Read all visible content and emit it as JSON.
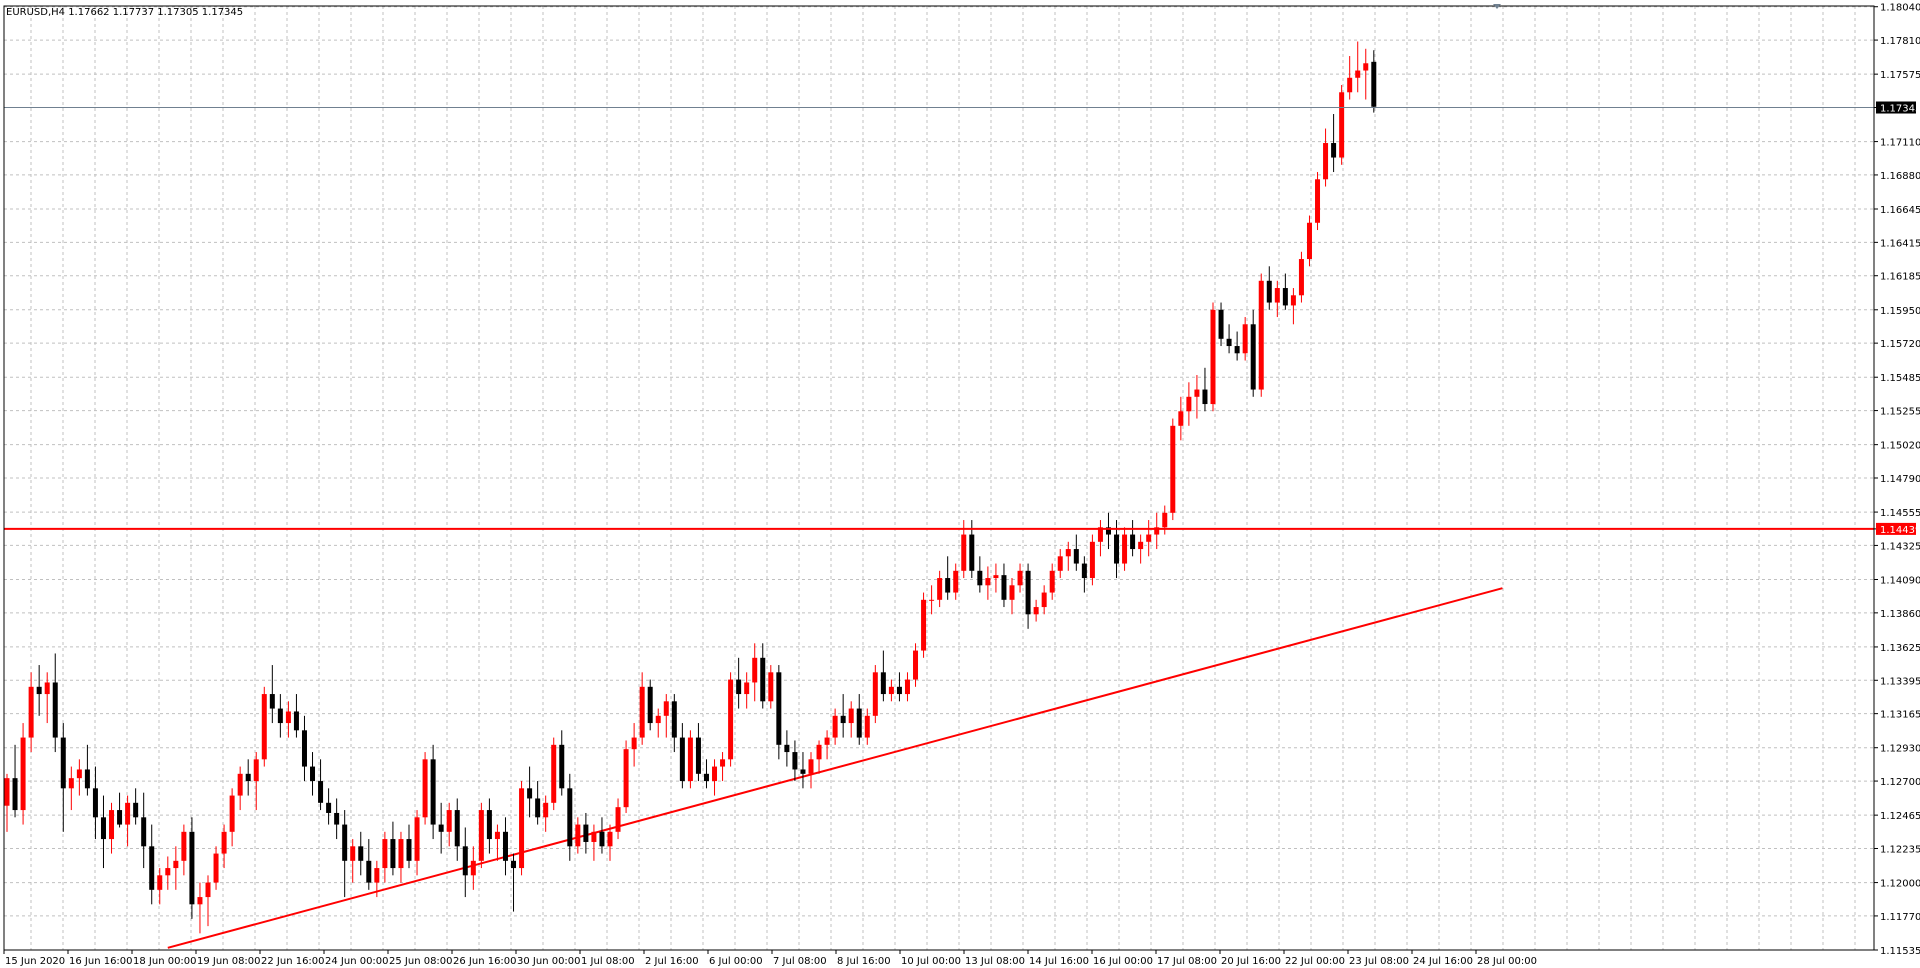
{
  "header": {
    "symbol_text": "EURUSD,H4 1.17662 1.17737 1.17305 1.17345"
  },
  "colors": {
    "bull_candle": "#ff0000",
    "bear_candle": "#000000",
    "grid": "#c0c0c0",
    "level_line": "#ff0000",
    "trend_line": "#ff0000",
    "current_price_line": "#708090"
  },
  "chart_data": {
    "type": "candlestick",
    "ylim": [
      1.11535,
      1.18045
    ],
    "y_tick_labels": [
      "1.18040",
      "1.17810",
      "1.17575",
      "1.17345",
      "1.17110",
      "1.16880",
      "1.16645",
      "1.16415",
      "1.16185",
      "1.15950",
      "1.15720",
      "1.15485",
      "1.15255",
      "1.15020",
      "1.14790",
      "1.14555",
      "1.14439",
      "1.14325",
      "1.14090",
      "1.13860",
      "1.13625",
      "1.13395",
      "1.13165",
      "1.12930",
      "1.12700",
      "1.12465",
      "1.12235",
      "1.12000",
      "1.11770",
      "1.11535"
    ],
    "x_tick_labels": [
      "15 Jun 2020",
      "16 Jun 16:00",
      "18 Jun 00:00",
      "19 Jun 08:00",
      "22 Jun 16:00",
      "24 Jun 00:00",
      "25 Jun 08:00",
      "26 Jun 16:00",
      "30 Jun 00:00",
      "1 Jul 08:00",
      "2 Jul 16:00",
      "6 Jul 00:00",
      "7 Jul 08:00",
      "8 Jul 16:00",
      "10 Jul 00:00",
      "13 Jul 08:00",
      "14 Jul 16:00",
      "16 Jul 00:00",
      "17 Jul 08:00",
      "20 Jul 16:00",
      "22 Jul 00:00",
      "23 Jul 08:00",
      "24 Jul 16:00",
      "28 Jul 00:00"
    ],
    "current_price": 1.17345,
    "horizontal_level": 1.14439,
    "candles": [
      [
        1.1253,
        1.1275,
        1.1235,
        1.1272
      ],
      [
        1.1272,
        1.1295,
        1.1245,
        1.125
      ],
      [
        1.125,
        1.131,
        1.124,
        1.13
      ],
      [
        1.13,
        1.1345,
        1.129,
        1.1335
      ],
      [
        1.1335,
        1.135,
        1.1315,
        1.133
      ],
      [
        1.133,
        1.1345,
        1.131,
        1.1338
      ],
      [
        1.1338,
        1.1358,
        1.129,
        1.13
      ],
      [
        1.13,
        1.131,
        1.1235,
        1.1265
      ],
      [
        1.1265,
        1.128,
        1.125,
        1.1272
      ],
      [
        1.1272,
        1.1285,
        1.126,
        1.1278
      ],
      [
        1.1278,
        1.1295,
        1.126,
        1.1265
      ],
      [
        1.1265,
        1.128,
        1.123,
        1.1245
      ],
      [
        1.1245,
        1.126,
        1.121,
        1.123
      ],
      [
        1.123,
        1.1255,
        1.122,
        1.125
      ],
      [
        1.125,
        1.1262,
        1.1238,
        1.124
      ],
      [
        1.124,
        1.126,
        1.1225,
        1.1255
      ],
      [
        1.1255,
        1.1265,
        1.124,
        1.1245
      ],
      [
        1.1245,
        1.1262,
        1.121,
        1.1225
      ],
      [
        1.1225,
        1.124,
        1.1185,
        1.1195
      ],
      [
        1.1195,
        1.121,
        1.1185,
        1.1205
      ],
      [
        1.1205,
        1.1218,
        1.1195,
        1.121
      ],
      [
        1.121,
        1.1225,
        1.1195,
        1.1215
      ],
      [
        1.1215,
        1.124,
        1.1205,
        1.1235
      ],
      [
        1.1235,
        1.1245,
        1.1175,
        1.1185
      ],
      [
        1.1185,
        1.12,
        1.1165,
        1.119
      ],
      [
        1.119,
        1.1205,
        1.117,
        1.12
      ],
      [
        1.12,
        1.1225,
        1.1195,
        1.122
      ],
      [
        1.122,
        1.124,
        1.121,
        1.1235
      ],
      [
        1.1235,
        1.1265,
        1.1225,
        1.126
      ],
      [
        1.126,
        1.128,
        1.125,
        1.1275
      ],
      [
        1.1275,
        1.1285,
        1.126,
        1.127
      ],
      [
        1.127,
        1.129,
        1.125,
        1.1285
      ],
      [
        1.1285,
        1.1335,
        1.128,
        1.133
      ],
      [
        1.133,
        1.135,
        1.131,
        1.132
      ],
      [
        1.132,
        1.133,
        1.13,
        1.131
      ],
      [
        1.131,
        1.1325,
        1.13,
        1.1318
      ],
      [
        1.1318,
        1.133,
        1.13,
        1.1305
      ],
      [
        1.1305,
        1.1315,
        1.127,
        1.128
      ],
      [
        1.128,
        1.129,
        1.126,
        1.127
      ],
      [
        1.127,
        1.1285,
        1.125,
        1.1255
      ],
      [
        1.1255,
        1.1265,
        1.124,
        1.1248
      ],
      [
        1.1248,
        1.1258,
        1.123,
        1.124
      ],
      [
        1.124,
        1.125,
        1.119,
        1.1215
      ],
      [
        1.1215,
        1.123,
        1.12,
        1.1225
      ],
      [
        1.1225,
        1.1235,
        1.1205,
        1.1215
      ],
      [
        1.1215,
        1.123,
        1.1195,
        1.12
      ],
      [
        1.12,
        1.1215,
        1.119,
        1.121
      ],
      [
        1.121,
        1.1235,
        1.12,
        1.123
      ],
      [
        1.123,
        1.1242,
        1.1205,
        1.121
      ],
      [
        1.121,
        1.1235,
        1.12,
        1.123
      ],
      [
        1.123,
        1.124,
        1.121,
        1.1215
      ],
      [
        1.1215,
        1.125,
        1.1205,
        1.1245
      ],
      [
        1.1245,
        1.129,
        1.124,
        1.1285
      ],
      [
        1.1285,
        1.1295,
        1.123,
        1.124
      ],
      [
        1.124,
        1.1255,
        1.122,
        1.1235
      ],
      [
        1.1235,
        1.1255,
        1.1225,
        1.125
      ],
      [
        1.125,
        1.1258,
        1.1215,
        1.1225
      ],
      [
        1.1225,
        1.1238,
        1.119,
        1.1205
      ],
      [
        1.1205,
        1.1225,
        1.1195,
        1.1215
      ],
      [
        1.1215,
        1.1255,
        1.121,
        1.125
      ],
      [
        1.125,
        1.1258,
        1.122,
        1.123
      ],
      [
        1.123,
        1.124,
        1.1215,
        1.1235
      ],
      [
        1.1235,
        1.1245,
        1.1205,
        1.1215
      ],
      [
        1.1215,
        1.122,
        1.118,
        1.121
      ],
      [
        1.121,
        1.127,
        1.1205,
        1.1265
      ],
      [
        1.1265,
        1.128,
        1.1245,
        1.1258
      ],
      [
        1.1258,
        1.127,
        1.124,
        1.1245
      ],
      [
        1.1245,
        1.126,
        1.1235,
        1.1255
      ],
      [
        1.1255,
        1.13,
        1.125,
        1.1295
      ],
      [
        1.1295,
        1.1305,
        1.126,
        1.1265
      ],
      [
        1.1265,
        1.1275,
        1.1215,
        1.1225
      ],
      [
        1.1225,
        1.1245,
        1.122,
        1.124
      ],
      [
        1.124,
        1.1248,
        1.122,
        1.1228
      ],
      [
        1.1228,
        1.124,
        1.1215,
        1.1235
      ],
      [
        1.1235,
        1.1245,
        1.122,
        1.1225
      ],
      [
        1.1225,
        1.124,
        1.1215,
        1.1235
      ],
      [
        1.1235,
        1.1258,
        1.123,
        1.1252
      ],
      [
        1.1252,
        1.1298,
        1.1248,
        1.1292
      ],
      [
        1.1292,
        1.131,
        1.128,
        1.13
      ],
      [
        1.13,
        1.1345,
        1.1295,
        1.1335
      ],
      [
        1.1335,
        1.134,
        1.1305,
        1.131
      ],
      [
        1.131,
        1.132,
        1.13,
        1.1315
      ],
      [
        1.1315,
        1.133,
        1.13,
        1.1325
      ],
      [
        1.1325,
        1.133,
        1.129,
        1.13
      ],
      [
        1.13,
        1.131,
        1.1265,
        1.127
      ],
      [
        1.127,
        1.1305,
        1.1265,
        1.13
      ],
      [
        1.13,
        1.131,
        1.127,
        1.1275
      ],
      [
        1.1275,
        1.1285,
        1.1265,
        1.127
      ],
      [
        1.127,
        1.1285,
        1.126,
        1.128
      ],
      [
        1.128,
        1.129,
        1.127,
        1.1285
      ],
      [
        1.1285,
        1.1345,
        1.128,
        1.134
      ],
      [
        1.134,
        1.1355,
        1.132,
        1.133
      ],
      [
        1.133,
        1.1345,
        1.132,
        1.1338
      ],
      [
        1.1338,
        1.1365,
        1.1325,
        1.1355
      ],
      [
        1.1355,
        1.1365,
        1.132,
        1.1325
      ],
      [
        1.1325,
        1.135,
        1.132,
        1.1345
      ],
      [
        1.1345,
        1.135,
        1.1285,
        1.1295
      ],
      [
        1.1295,
        1.1305,
        1.128,
        1.129
      ],
      [
        1.129,
        1.1298,
        1.127,
        1.1278
      ],
      [
        1.1278,
        1.129,
        1.1265,
        1.1275
      ],
      [
        1.1275,
        1.129,
        1.1265,
        1.1285
      ],
      [
        1.1285,
        1.1298,
        1.1275,
        1.1295
      ],
      [
        1.1295,
        1.1305,
        1.1285,
        1.13
      ],
      [
        1.13,
        1.132,
        1.1295,
        1.1315
      ],
      [
        1.1315,
        1.133,
        1.13,
        1.131
      ],
      [
        1.131,
        1.1325,
        1.13,
        1.132
      ],
      [
        1.132,
        1.133,
        1.1295,
        1.13
      ],
      [
        1.13,
        1.132,
        1.1295,
        1.1315
      ],
      [
        1.1315,
        1.135,
        1.131,
        1.1345
      ],
      [
        1.1345,
        1.136,
        1.1325,
        1.133
      ],
      [
        1.133,
        1.134,
        1.1325,
        1.1335
      ],
      [
        1.1335,
        1.1345,
        1.1325,
        1.133
      ],
      [
        1.133,
        1.1345,
        1.1325,
        1.134
      ],
      [
        1.134,
        1.1365,
        1.1335,
        1.136
      ],
      [
        1.136,
        1.14,
        1.1355,
        1.1395
      ],
      [
        1.1395,
        1.1405,
        1.1385,
        1.1395
      ],
      [
        1.1395,
        1.1415,
        1.139,
        1.141
      ],
      [
        1.141,
        1.1425,
        1.1395,
        1.14
      ],
      [
        1.14,
        1.142,
        1.1395,
        1.1415
      ],
      [
        1.1415,
        1.145,
        1.141,
        1.144
      ],
      [
        1.144,
        1.145,
        1.141,
        1.1415
      ],
      [
        1.1415,
        1.1425,
        1.14,
        1.1405
      ],
      [
        1.1405,
        1.1418,
        1.1395,
        1.141
      ],
      [
        1.141,
        1.142,
        1.14,
        1.1412
      ],
      [
        1.1412,
        1.142,
        1.139,
        1.1395
      ],
      [
        1.1395,
        1.141,
        1.1385,
        1.1405
      ],
      [
        1.1405,
        1.142,
        1.14,
        1.1415
      ],
      [
        1.1415,
        1.142,
        1.1375,
        1.1385
      ],
      [
        1.1385,
        1.1395,
        1.138,
        1.139
      ],
      [
        1.139,
        1.1405,
        1.1385,
        1.14
      ],
      [
        1.14,
        1.142,
        1.1395,
        1.1415
      ],
      [
        1.1415,
        1.143,
        1.141,
        1.1425
      ],
      [
        1.1425,
        1.1435,
        1.1415,
        1.143
      ],
      [
        1.143,
        1.144,
        1.1415,
        1.142
      ],
      [
        1.142,
        1.1425,
        1.14,
        1.141
      ],
      [
        1.141,
        1.144,
        1.1405,
        1.1435
      ],
      [
        1.1435,
        1.145,
        1.1425,
        1.1445
      ],
      [
        1.1445,
        1.1455,
        1.143,
        1.144
      ],
      [
        1.144,
        1.145,
        1.141,
        1.142
      ],
      [
        1.142,
        1.1445,
        1.1415,
        1.144
      ],
      [
        1.144,
        1.145,
        1.1425,
        1.143
      ],
      [
        1.143,
        1.144,
        1.142,
        1.1435
      ],
      [
        1.1435,
        1.145,
        1.1425,
        1.144
      ],
      [
        1.144,
        1.1455,
        1.143,
        1.1445
      ],
      [
        1.1445,
        1.146,
        1.144,
        1.1455
      ],
      [
        1.1455,
        1.152,
        1.145,
        1.1515
      ],
      [
        1.1515,
        1.1535,
        1.1505,
        1.1525
      ],
      [
        1.1525,
        1.1545,
        1.1515,
        1.1535
      ],
      [
        1.1535,
        1.155,
        1.152,
        1.154
      ],
      [
        1.154,
        1.1555,
        1.1525,
        1.153
      ],
      [
        1.153,
        1.16,
        1.1525,
        1.1595
      ],
      [
        1.1595,
        1.16,
        1.157,
        1.1575
      ],
      [
        1.1575,
        1.1585,
        1.1565,
        1.157
      ],
      [
        1.157,
        1.158,
        1.156,
        1.1565
      ],
      [
        1.1565,
        1.159,
        1.156,
        1.1585
      ],
      [
        1.1585,
        1.1595,
        1.1535,
        1.154
      ],
      [
        1.154,
        1.162,
        1.1535,
        1.1615
      ],
      [
        1.1615,
        1.1625,
        1.1595,
        1.16
      ],
      [
        1.16,
        1.1615,
        1.159,
        1.161
      ],
      [
        1.161,
        1.162,
        1.1595,
        1.1598
      ],
      [
        1.1598,
        1.161,
        1.1585,
        1.1605
      ],
      [
        1.1605,
        1.1635,
        1.16,
        1.163
      ],
      [
        1.163,
        1.166,
        1.1625,
        1.1655
      ],
      [
        1.1655,
        1.169,
        1.165,
        1.1685
      ],
      [
        1.1685,
        1.172,
        1.168,
        1.171
      ],
      [
        1.171,
        1.173,
        1.169,
        1.17
      ],
      [
        1.17,
        1.175,
        1.1695,
        1.1745
      ],
      [
        1.1745,
        1.177,
        1.174,
        1.1755
      ],
      [
        1.1755,
        1.178,
        1.1745,
        1.176
      ],
      [
        1.176,
        1.1775,
        1.174,
        1.1765
      ],
      [
        1.1766,
        1.1774,
        1.1731,
        1.1735
      ]
    ],
    "trend_line": {
      "from": {
        "candle": 20,
        "price": 1.1155
      },
      "to": {
        "candle": 186,
        "price": 1.1403
      }
    }
  }
}
